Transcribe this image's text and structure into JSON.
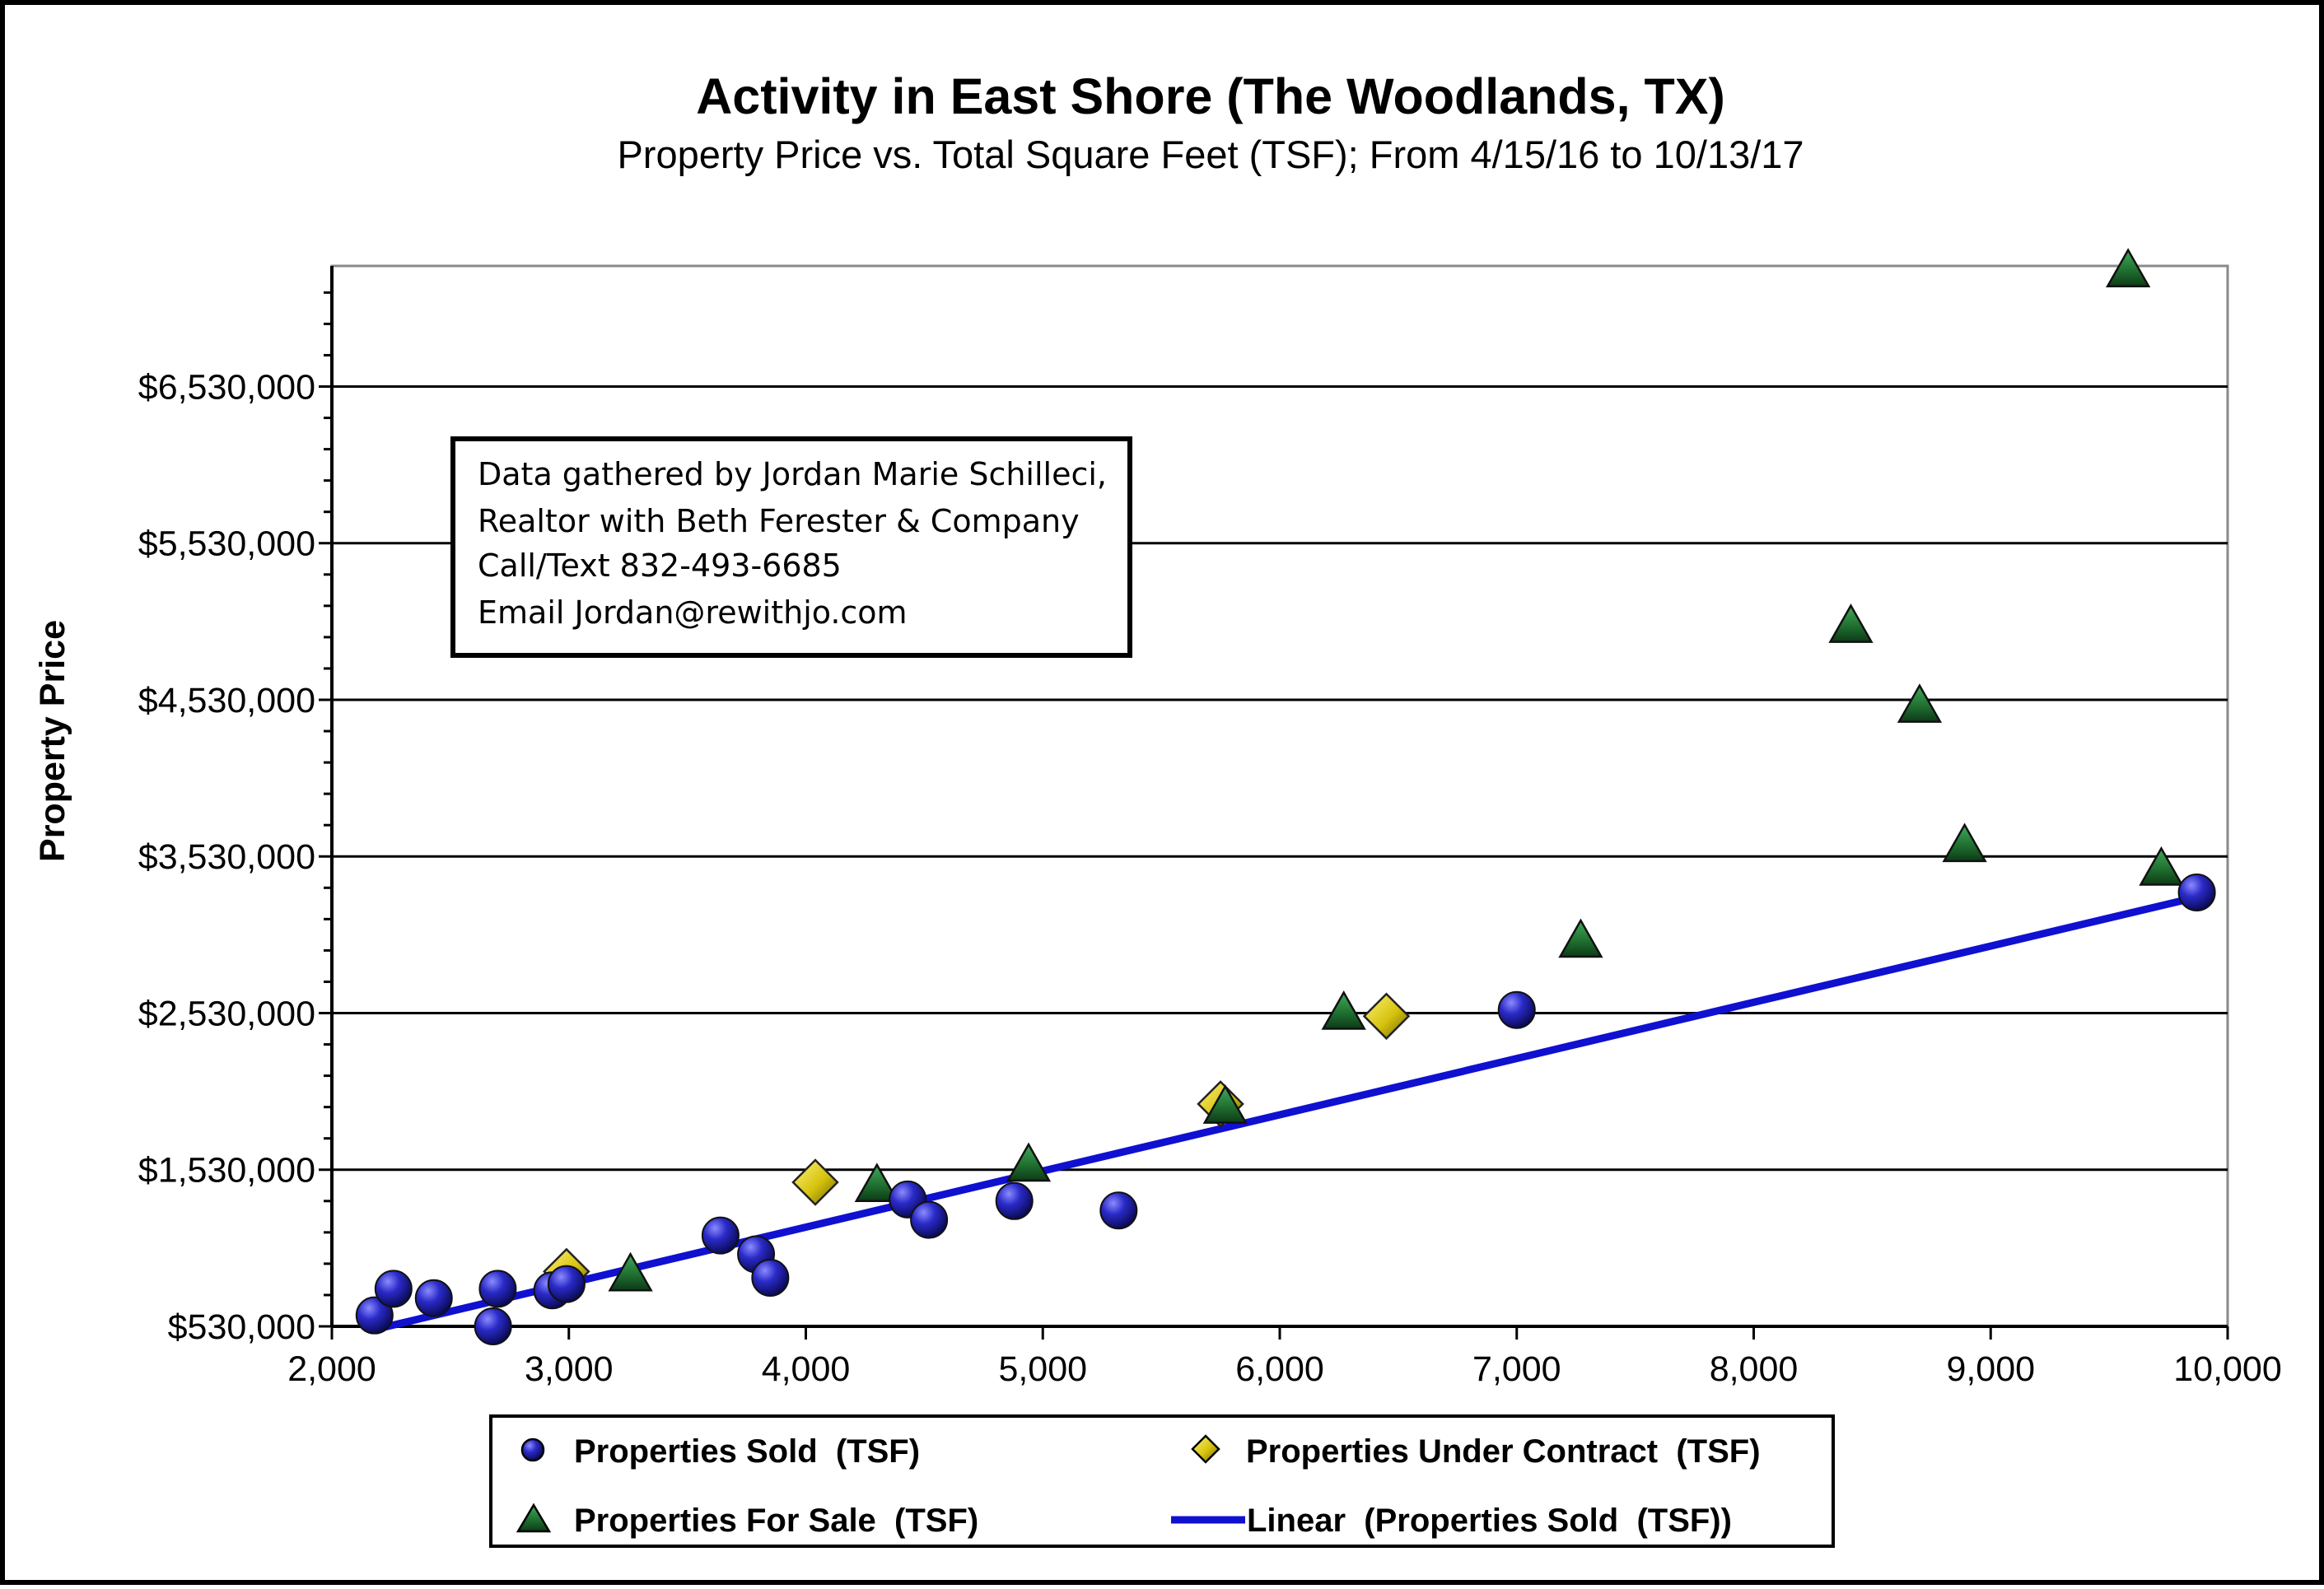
{
  "chart_data": {
    "type": "scatter",
    "title": "Activity in East Shore (The Woodlands, TX)",
    "subtitle": "Property Price vs. Total Square Feet (TSF); From 4/15/16 to 10/13/17",
    "xlabel": "",
    "ylabel": "Property Price",
    "xlim": [
      2000,
      10000
    ],
    "ylim": [
      530000,
      7300000
    ],
    "x_ticks": [
      2000,
      3000,
      4000,
      5000,
      6000,
      7000,
      8000,
      9000,
      10000
    ],
    "x_tick_labels": [
      "2,000",
      "3,000",
      "4,000",
      "5,000",
      "6,000",
      "7,000",
      "8,000",
      "9,000",
      "10,000"
    ],
    "y_ticks": [
      530000,
      1530000,
      2530000,
      3530000,
      4530000,
      5530000,
      6530000
    ],
    "y_tick_labels": [
      "$530,000",
      "$1,530,000",
      "$2,530,000",
      "$3,530,000",
      "$4,530,000",
      "$5,530,000",
      "$6,530,000"
    ],
    "grid": "horizontal",
    "legend_position": "bottom",
    "colors": {
      "sold": "#1f1fa8",
      "contract": "#e0d21a",
      "for_sale": "#1e6b2e",
      "linear": "#1010d0"
    },
    "series": [
      {
        "name": "Properties Sold  (TSF)",
        "marker": "circle",
        "points": [
          {
            "x": 2180,
            "y": 600000
          },
          {
            "x": 2260,
            "y": 770000
          },
          {
            "x": 2430,
            "y": 710000
          },
          {
            "x": 2680,
            "y": 530000
          },
          {
            "x": 2700,
            "y": 770000
          },
          {
            "x": 2930,
            "y": 760000
          },
          {
            "x": 2990,
            "y": 800000
          },
          {
            "x": 3640,
            "y": 1110000
          },
          {
            "x": 3790,
            "y": 990000
          },
          {
            "x": 3850,
            "y": 840000
          },
          {
            "x": 4430,
            "y": 1340000
          },
          {
            "x": 4520,
            "y": 1210000
          },
          {
            "x": 4880,
            "y": 1330000
          },
          {
            "x": 5320,
            "y": 1270000
          },
          {
            "x": 7000,
            "y": 2550000
          },
          {
            "x": 9870,
            "y": 3300000
          }
        ]
      },
      {
        "name": "Properties Under Contract  (TSF)",
        "marker": "diamond",
        "points": [
          {
            "x": 2990,
            "y": 880000
          },
          {
            "x": 4040,
            "y": 1450000
          },
          {
            "x": 5750,
            "y": 1950000
          },
          {
            "x": 6450,
            "y": 2510000
          }
        ]
      },
      {
        "name": "Properties For Sale  (TSF)",
        "marker": "triangle",
        "points": [
          {
            "x": 3260,
            "y": 860000
          },
          {
            "x": 4300,
            "y": 1430000
          },
          {
            "x": 4940,
            "y": 1560000
          },
          {
            "x": 5770,
            "y": 1930000
          },
          {
            "x": 6270,
            "y": 2530000
          },
          {
            "x": 7270,
            "y": 2990000
          },
          {
            "x": 8410,
            "y": 5000000
          },
          {
            "x": 8700,
            "y": 4490000
          },
          {
            "x": 8890,
            "y": 3600000
          },
          {
            "x": 9580,
            "y": 7270000
          },
          {
            "x": 9720,
            "y": 3450000
          }
        ]
      }
    ],
    "trendline": {
      "name": "Linear  (Properties Sold  (TSF))",
      "type": "linear",
      "points": [
        {
          "x": 2180,
          "y": 510000
        },
        {
          "x": 9870,
          "y": 3270000
        }
      ]
    }
  },
  "annotation": {
    "lines": [
      "Data gathered by Jordan Marie Schilleci,",
      "Realtor with Beth Ferester & Company",
      "Call/Text 832-493-6685",
      "Email Jordan@rewithjo.com"
    ]
  },
  "legend": {
    "sold": "Properties Sold  (TSF)",
    "contract": "Properties Under Contract  (TSF)",
    "for_sale": "Properties For Sale  (TSF)",
    "linear": "Linear  (Properties Sold  (TSF))"
  }
}
